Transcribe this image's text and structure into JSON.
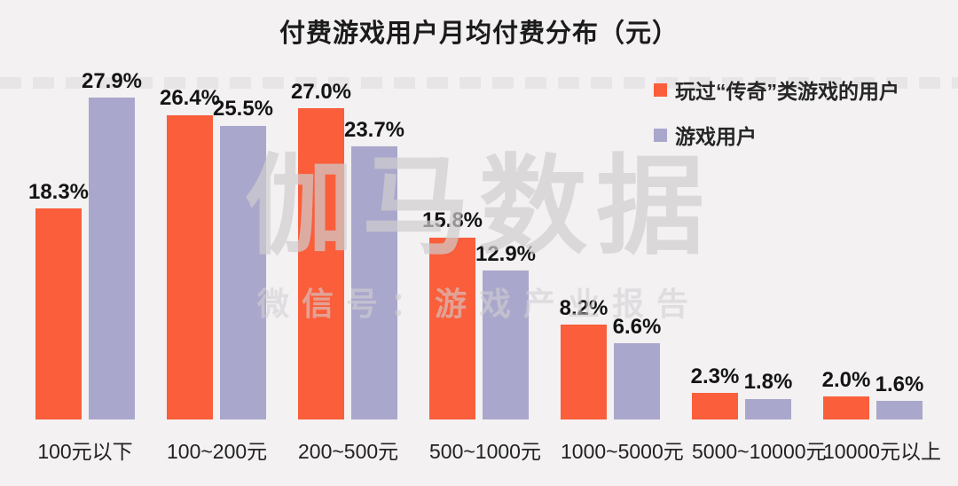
{
  "title": "付费游戏用户月均付费分布（元）",
  "watermark": {
    "main": "伽马数据",
    "sub": "微信号：游戏产业报告"
  },
  "colors": {
    "series_legend": "#fa5e3b",
    "series_general": "#aaa7cc",
    "background": "#f3f1f2",
    "title_text": "#1b1b1b",
    "watermark_gray": "#cecdce"
  },
  "chart_data": {
    "type": "bar",
    "title": "付费游戏用户月均付费分布（元）",
    "categories": [
      "100元以下",
      "100~200元",
      "200~500元",
      "500~1000元",
      "1000~5000元",
      "5000~10000元",
      "10000元以上"
    ],
    "series": [
      {
        "name": "玩过“传奇”类游戏的用户",
        "color": "#fa5e3b",
        "values": [
          18.3,
          26.4,
          27.0,
          15.8,
          8.2,
          2.3,
          2.0
        ]
      },
      {
        "name": "游戏用户",
        "color": "#aaa7cc",
        "values": [
          27.9,
          25.5,
          23.7,
          12.9,
          6.6,
          1.8,
          1.6
        ]
      }
    ],
    "value_suffix": "%",
    "value_labels": true,
    "xlabel": "",
    "ylabel": "",
    "ylim": [
      0,
      28
    ],
    "grid": false,
    "legend_position": "top-right"
  }
}
